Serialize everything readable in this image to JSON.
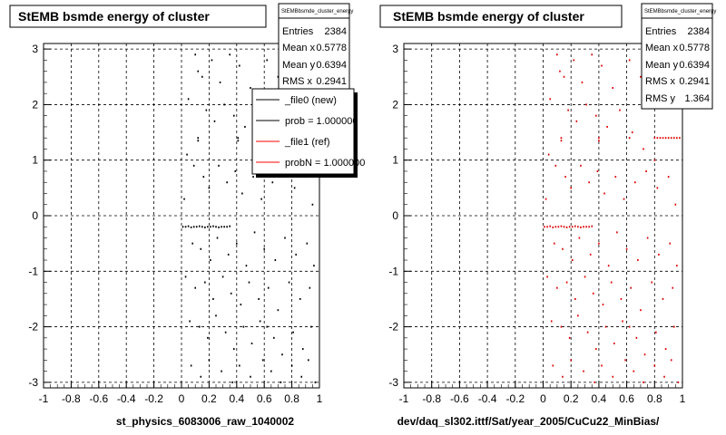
{
  "colors": {
    "hist_black": "#000000",
    "hist_ref": "#dd0000",
    "legend_ref_line": "#ff0000"
  },
  "pads": [
    {
      "title": "StEMB bsmde energy of cluster",
      "stats": {
        "name": "StEMBbsmde_cluster_energy",
        "rows": [
          {
            "k": "Entries",
            "v": "2384"
          },
          {
            "k": "Mean x",
            "v": "0.5778"
          },
          {
            "k": "Mean y",
            "v": "0.6394"
          },
          {
            "k": "RMS x",
            "v": "0.2941"
          }
        ]
      },
      "legend": [
        {
          "label": "_file0 (new)",
          "color": "#000000"
        },
        {
          "label": "prob = 1.000000",
          "color": "#000000"
        },
        {
          "label": "_file1 (ref)",
          "color": "#ff0000"
        },
        {
          "label": "probN = 1.000000",
          "color": "#ff0000"
        }
      ],
      "xcaption": "st_physics_6083006_raw_1040002",
      "marker_color": "#000000"
    },
    {
      "title": "StEMB bsmde energy of cluster",
      "stats": {
        "name": "StEMBbsmde_cluster_energy",
        "rows": [
          {
            "k": "Entries",
            "v": "2384"
          },
          {
            "k": "Mean x",
            "v": "0.5778"
          },
          {
            "k": "Mean y",
            "v": "0.6394"
          },
          {
            "k": "RMS x",
            "v": "0.2941"
          },
          {
            "k": "RMS y",
            "v": "1.364"
          }
        ]
      },
      "xcaption": "dev/daq_sl302.ittf/Sat/year_2005/CuCu22_MinBias/",
      "marker_color": "#dd0000"
    }
  ],
  "chart_data": {
    "type": "scatter",
    "xlim": [
      -1,
      1
    ],
    "ylim": [
      -3.1,
      3.1
    ],
    "grid": true,
    "x_ticks": [
      "-1",
      "-0.8",
      "-0.6",
      "-0.4",
      "-0.2",
      "0",
      "0.2",
      "0.4",
      "0.6",
      "0.8",
      "1"
    ],
    "y_ticks": [
      "-3",
      "-2",
      "-1",
      "0",
      "1",
      "2",
      "3"
    ],
    "series": [
      {
        "name": "_file0 (new)",
        "points": [
          [
            0.01,
            -0.2
          ],
          [
            0.03,
            -0.2
          ],
          [
            0.05,
            -0.19
          ],
          [
            0.07,
            -0.21
          ],
          [
            0.09,
            -0.2
          ],
          [
            0.11,
            -0.2
          ],
          [
            0.13,
            -0.19
          ],
          [
            0.15,
            -0.2
          ],
          [
            0.17,
            -0.21
          ],
          [
            0.19,
            -0.2
          ],
          [
            0.21,
            -0.2
          ],
          [
            0.23,
            -0.19
          ],
          [
            0.25,
            -0.2
          ],
          [
            0.27,
            -0.21
          ],
          [
            0.29,
            -0.2
          ],
          [
            0.31,
            -0.2
          ],
          [
            0.33,
            -0.2
          ],
          [
            0.35,
            -0.19
          ],
          [
            0.12,
            1.4
          ],
          [
            0.12,
            1.35
          ],
          [
            0.41,
            1.4
          ],
          [
            0.41,
            1.35
          ],
          [
            0.1,
            2.9
          ],
          [
            0.12,
            2.6
          ],
          [
            0.15,
            2.5
          ],
          [
            0.22,
            2.8
          ],
          [
            0.28,
            2.4
          ],
          [
            0.35,
            2.9
          ],
          [
            0.42,
            2.7
          ],
          [
            0.5,
            2.3
          ],
          [
            0.62,
            2.8
          ],
          [
            0.7,
            2.5
          ],
          [
            0.05,
            2.1
          ],
          [
            0.18,
            1.9
          ],
          [
            0.24,
            1.7
          ],
          [
            0.31,
            2.0
          ],
          [
            0.38,
            1.8
          ],
          [
            0.46,
            1.6
          ],
          [
            0.55,
            1.9
          ],
          [
            0.64,
            1.5
          ],
          [
            0.72,
            1.2
          ],
          [
            0.8,
            1.0
          ],
          [
            0.04,
            1.1
          ],
          [
            0.09,
            0.9
          ],
          [
            0.16,
            0.7
          ],
          [
            0.2,
            0.5
          ],
          [
            0.27,
            0.9
          ],
          [
            0.33,
            0.6
          ],
          [
            0.39,
            0.8
          ],
          [
            0.44,
            0.4
          ],
          [
            0.52,
            0.7
          ],
          [
            0.58,
            0.3
          ],
          [
            0.66,
            0.6
          ],
          [
            0.74,
            0.8
          ],
          [
            0.82,
            0.5
          ],
          [
            0.9,
            0.7
          ],
          [
            0.95,
            0.2
          ],
          [
            0.02,
            0.3
          ],
          [
            0.08,
            -0.5
          ],
          [
            0.14,
            -0.6
          ],
          [
            0.21,
            -0.8
          ],
          [
            0.26,
            -0.4
          ],
          [
            0.34,
            -0.7
          ],
          [
            0.4,
            -0.5
          ],
          [
            0.47,
            -0.9
          ],
          [
            0.53,
            -0.3
          ],
          [
            0.6,
            -0.6
          ],
          [
            0.68,
            -0.8
          ],
          [
            0.75,
            -0.4
          ],
          [
            0.83,
            -0.7
          ],
          [
            0.91,
            -0.5
          ],
          [
            0.96,
            -0.9
          ],
          [
            0.03,
            -1.1
          ],
          [
            0.1,
            -1.3
          ],
          [
            0.17,
            -1.2
          ],
          [
            0.23,
            -1.5
          ],
          [
            0.3,
            -1.1
          ],
          [
            0.36,
            -1.4
          ],
          [
            0.43,
            -1.6
          ],
          [
            0.49,
            -1.2
          ],
          [
            0.56,
            -1.5
          ],
          [
            0.63,
            -1.3
          ],
          [
            0.7,
            -1.7
          ],
          [
            0.78,
            -1.2
          ],
          [
            0.86,
            -1.5
          ],
          [
            0.93,
            -1.3
          ],
          [
            0.06,
            -1.9
          ],
          [
            0.13,
            -2.0
          ],
          [
            0.19,
            -2.2
          ],
          [
            0.25,
            -1.8
          ],
          [
            0.32,
            -2.1
          ],
          [
            0.38,
            -2.4
          ],
          [
            0.45,
            -2.0
          ],
          [
            0.51,
            -2.3
          ],
          [
            0.57,
            -1.9
          ],
          [
            0.62,
            -2.0
          ],
          [
            0.67,
            -2.2
          ],
          [
            0.73,
            -2.5
          ],
          [
            0.81,
            -2.1
          ],
          [
            0.88,
            -2.4
          ],
          [
            0.94,
            -2.0
          ],
          [
            0.07,
            -2.7
          ],
          [
            0.14,
            -2.9
          ],
          [
            0.2,
            -2.6
          ],
          [
            0.29,
            -2.8
          ],
          [
            0.37,
            -3.0
          ],
          [
            0.42,
            -2.7
          ],
          [
            0.5,
            -2.9
          ],
          [
            0.59,
            -2.6
          ],
          [
            0.65,
            -2.8
          ],
          [
            0.72,
            -3.0
          ],
          [
            0.8,
            -2.7
          ],
          [
            0.87,
            -2.9
          ],
          [
            0.92,
            -2.6
          ],
          [
            0.97,
            -3.0
          ]
        ]
      },
      {
        "name": "_file1 (ref)",
        "points": [
          [
            0.01,
            -0.2
          ],
          [
            0.03,
            -0.2
          ],
          [
            0.05,
            -0.19
          ],
          [
            0.07,
            -0.21
          ],
          [
            0.09,
            -0.2
          ],
          [
            0.11,
            -0.2
          ],
          [
            0.13,
            -0.19
          ],
          [
            0.15,
            -0.2
          ],
          [
            0.17,
            -0.21
          ],
          [
            0.19,
            -0.2
          ],
          [
            0.21,
            -0.2
          ],
          [
            0.23,
            -0.19
          ],
          [
            0.25,
            -0.2
          ],
          [
            0.27,
            -0.21
          ],
          [
            0.29,
            -0.2
          ],
          [
            0.31,
            -0.2
          ],
          [
            0.33,
            -0.2
          ],
          [
            0.35,
            -0.19
          ],
          [
            0.13,
            1.4
          ],
          [
            0.13,
            1.35
          ],
          [
            0.4,
            1.4
          ],
          [
            0.4,
            1.35
          ],
          [
            0.62,
            1.4
          ],
          [
            0.8,
            1.4
          ],
          [
            0.82,
            1.4
          ],
          [
            0.84,
            1.4
          ],
          [
            0.86,
            1.4
          ],
          [
            0.88,
            1.4
          ],
          [
            0.9,
            1.4
          ],
          [
            0.92,
            1.4
          ],
          [
            0.94,
            1.4
          ],
          [
            0.96,
            1.4
          ],
          [
            0.98,
            1.4
          ],
          [
            0.1,
            2.9
          ],
          [
            0.12,
            2.6
          ],
          [
            0.15,
            2.5
          ],
          [
            0.22,
            2.8
          ],
          [
            0.28,
            2.4
          ],
          [
            0.35,
            2.9
          ],
          [
            0.42,
            2.7
          ],
          [
            0.5,
            2.3
          ],
          [
            0.62,
            2.8
          ],
          [
            0.7,
            2.5
          ],
          [
            0.05,
            2.1
          ],
          [
            0.18,
            1.9
          ],
          [
            0.24,
            1.7
          ],
          [
            0.31,
            2.0
          ],
          [
            0.38,
            1.8
          ],
          [
            0.46,
            1.6
          ],
          [
            0.55,
            1.9
          ],
          [
            0.64,
            1.5
          ],
          [
            0.72,
            1.2
          ],
          [
            0.8,
            1.0
          ],
          [
            0.04,
            1.1
          ],
          [
            0.09,
            0.9
          ],
          [
            0.16,
            0.7
          ],
          [
            0.2,
            0.5
          ],
          [
            0.27,
            0.9
          ],
          [
            0.33,
            0.6
          ],
          [
            0.39,
            0.8
          ],
          [
            0.44,
            0.4
          ],
          [
            0.52,
            0.7
          ],
          [
            0.58,
            0.3
          ],
          [
            0.66,
            0.6
          ],
          [
            0.74,
            0.8
          ],
          [
            0.82,
            0.5
          ],
          [
            0.9,
            0.7
          ],
          [
            0.95,
            0.2
          ],
          [
            0.02,
            0.3
          ],
          [
            0.08,
            -0.5
          ],
          [
            0.14,
            -0.6
          ],
          [
            0.21,
            -0.8
          ],
          [
            0.26,
            -0.4
          ],
          [
            0.34,
            -0.7
          ],
          [
            0.4,
            -0.5
          ],
          [
            0.47,
            -0.9
          ],
          [
            0.53,
            -0.3
          ],
          [
            0.6,
            -0.6
          ],
          [
            0.68,
            -0.8
          ],
          [
            0.75,
            -0.4
          ],
          [
            0.83,
            -0.7
          ],
          [
            0.91,
            -0.5
          ],
          [
            0.96,
            -0.9
          ],
          [
            0.03,
            -1.1
          ],
          [
            0.1,
            -1.3
          ],
          [
            0.17,
            -1.2
          ],
          [
            0.23,
            -1.5
          ],
          [
            0.3,
            -1.1
          ],
          [
            0.36,
            -1.4
          ],
          [
            0.43,
            -1.6
          ],
          [
            0.49,
            -1.2
          ],
          [
            0.56,
            -1.5
          ],
          [
            0.63,
            -1.3
          ],
          [
            0.7,
            -1.7
          ],
          [
            0.78,
            -1.2
          ],
          [
            0.86,
            -1.5
          ],
          [
            0.93,
            -1.3
          ],
          [
            0.06,
            -1.9
          ],
          [
            0.13,
            -2.0
          ],
          [
            0.19,
            -2.2
          ],
          [
            0.25,
            -1.8
          ],
          [
            0.32,
            -2.1
          ],
          [
            0.38,
            -2.4
          ],
          [
            0.45,
            -2.0
          ],
          [
            0.51,
            -2.3
          ],
          [
            0.57,
            -1.9
          ],
          [
            0.62,
            -2.0
          ],
          [
            0.67,
            -2.2
          ],
          [
            0.73,
            -2.5
          ],
          [
            0.81,
            -2.1
          ],
          [
            0.88,
            -2.4
          ],
          [
            0.94,
            -2.0
          ],
          [
            0.07,
            -2.7
          ],
          [
            0.14,
            -2.9
          ],
          [
            0.2,
            -2.6
          ],
          [
            0.29,
            -2.8
          ],
          [
            0.37,
            -3.0
          ],
          [
            0.42,
            -2.7
          ],
          [
            0.5,
            -2.9
          ],
          [
            0.59,
            -2.6
          ],
          [
            0.65,
            -2.8
          ],
          [
            0.72,
            -3.0
          ],
          [
            0.8,
            -2.7
          ],
          [
            0.87,
            -2.9
          ],
          [
            0.92,
            -2.6
          ],
          [
            0.97,
            -3.0
          ]
        ]
      }
    ]
  }
}
